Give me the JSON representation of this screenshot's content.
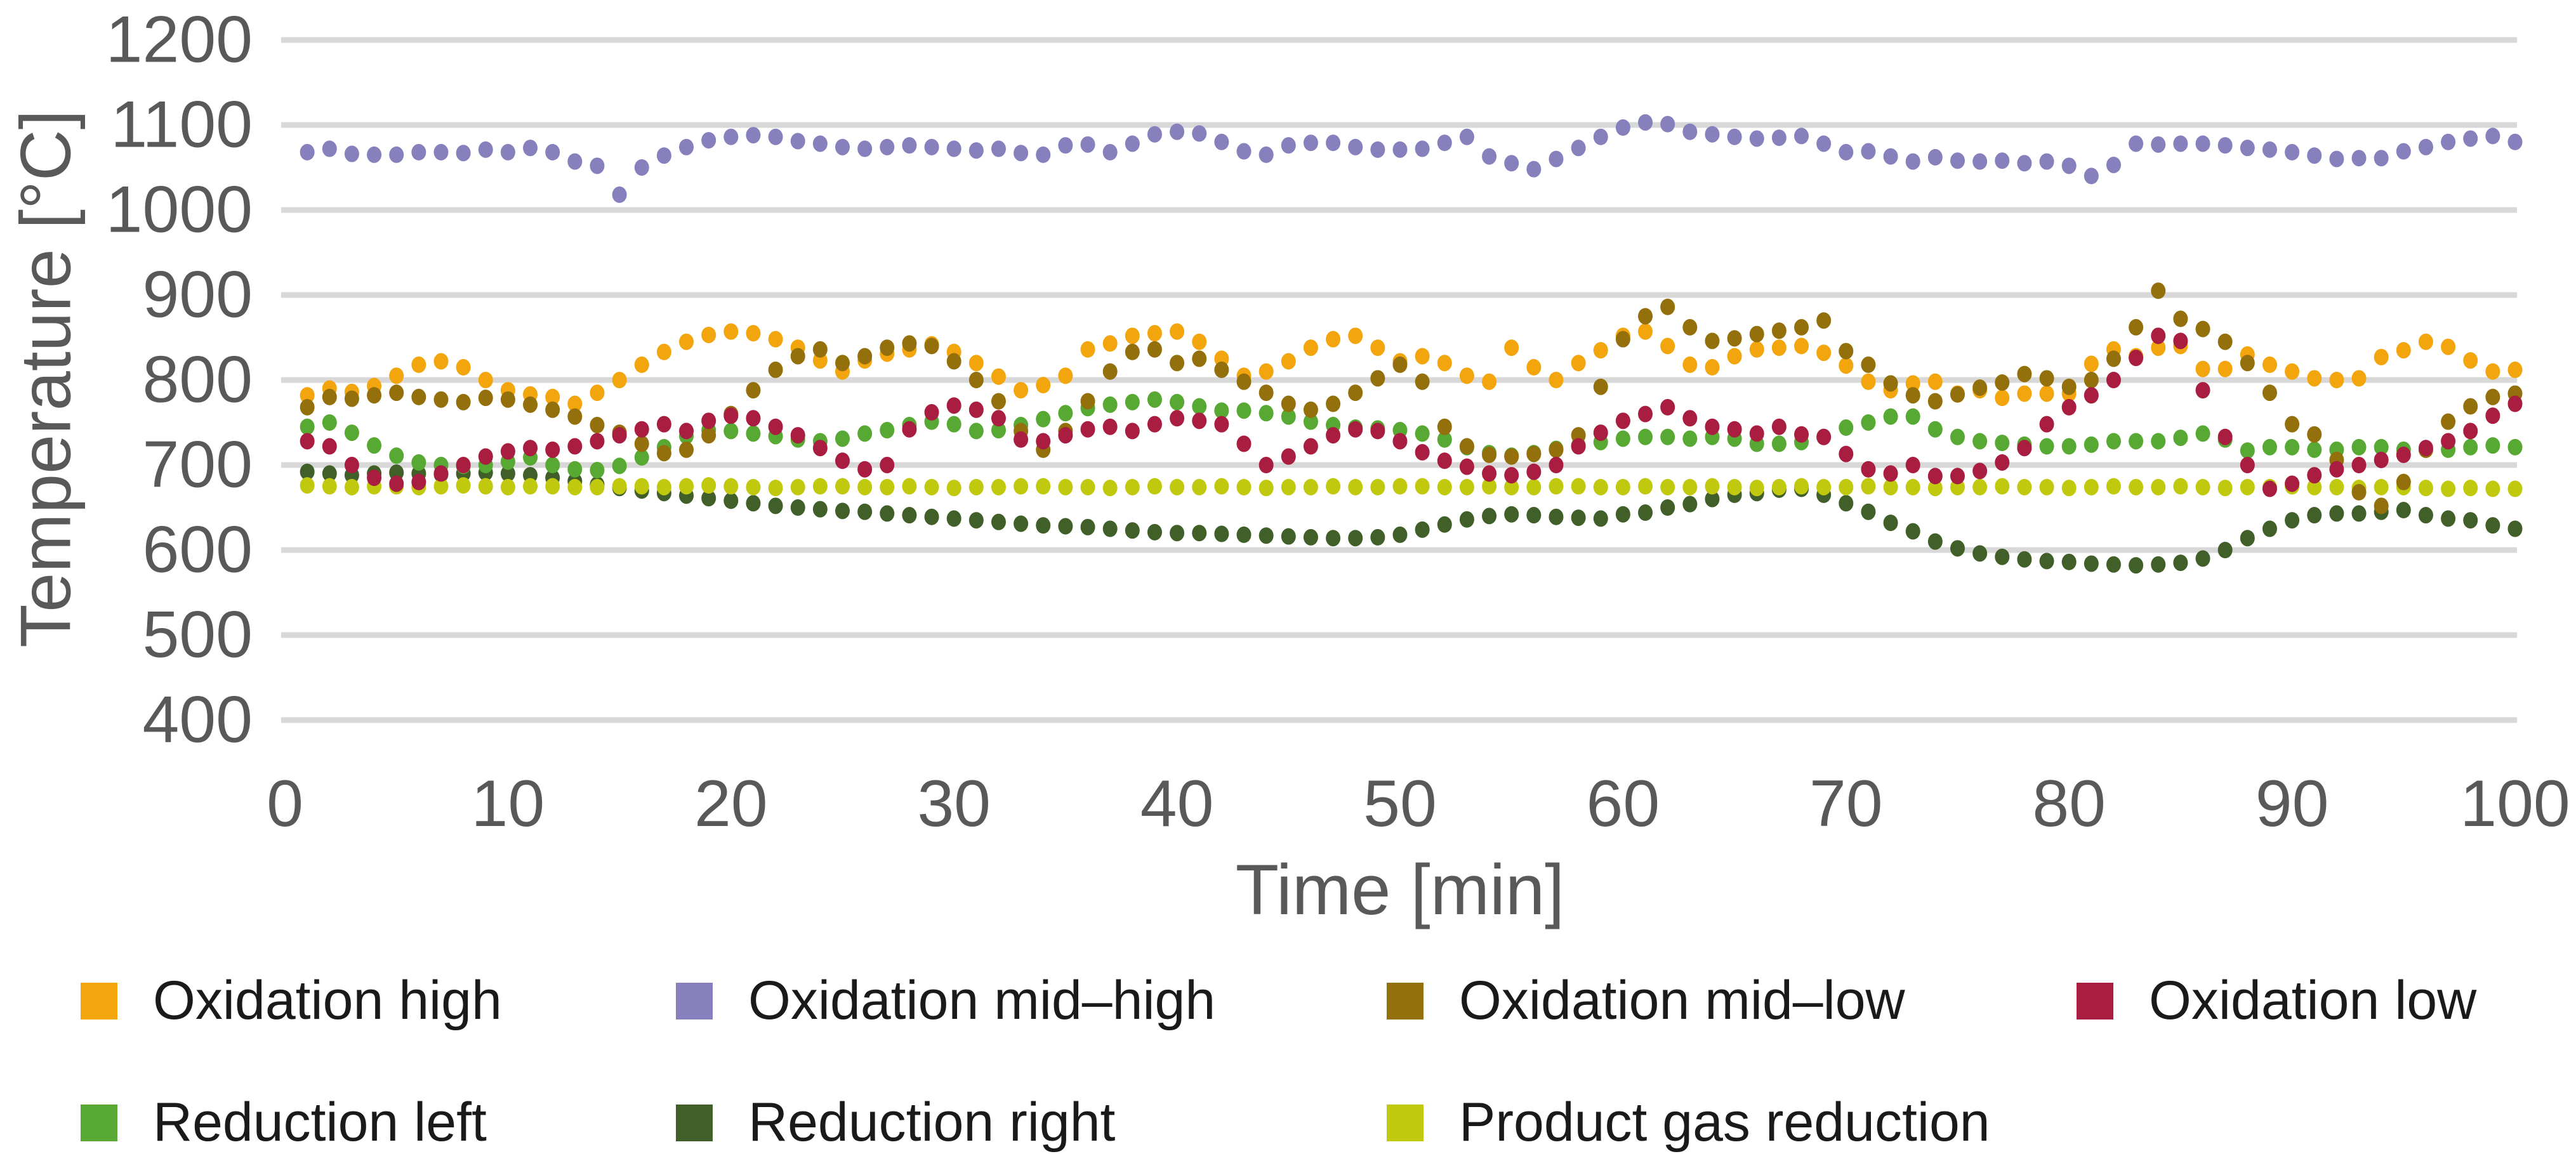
{
  "axes": {
    "x_title": "Time [min]",
    "y_title": "Temperature [°C]"
  },
  "chart_data": {
    "type": "scatter",
    "title": "",
    "xlabel": "Time [min]",
    "ylabel": "Temperature [°C]",
    "xlim": [
      0,
      100
    ],
    "ylim": [
      400,
      1200
    ],
    "x_ticks": [
      0,
      10,
      20,
      30,
      40,
      50,
      60,
      70,
      80,
      90,
      100
    ],
    "y_ticks": [
      400,
      500,
      600,
      700,
      800,
      900,
      1000,
      1100,
      1200
    ],
    "grid": "horizontal",
    "gridline_color": "#d8d8d8",
    "axis_text_color": "#595959",
    "legend_position": "bottom",
    "x": [
      1,
      2,
      3,
      4,
      5,
      6,
      7,
      8,
      9,
      10,
      11,
      12,
      13,
      14,
      15,
      16,
      17,
      18,
      19,
      20,
      21,
      22,
      23,
      24,
      25,
      26,
      27,
      28,
      29,
      30,
      31,
      32,
      33,
      34,
      35,
      36,
      37,
      38,
      39,
      40,
      41,
      42,
      43,
      44,
      45,
      46,
      47,
      48,
      49,
      50,
      51,
      52,
      53,
      54,
      55,
      56,
      57,
      58,
      59,
      60,
      61,
      62,
      63,
      64,
      65,
      66,
      67,
      68,
      69,
      70,
      71,
      72,
      73,
      74,
      75,
      76,
      77,
      78,
      79,
      80,
      81,
      82,
      83,
      84,
      85,
      86,
      87,
      88,
      89,
      90,
      91,
      92,
      93,
      94,
      95,
      96,
      97,
      98,
      99,
      100
    ],
    "series": [
      {
        "name": "Oxidation high",
        "color": "#F3A50E",
        "values": [
          782,
          790,
          786,
          793,
          805,
          818,
          822,
          815,
          800,
          788,
          783,
          780,
          772,
          785,
          800,
          818,
          833,
          845,
          853,
          857,
          855,
          848,
          838,
          823,
          810,
          823,
          831,
          836,
          842,
          833,
          820,
          804,
          788,
          794,
          805,
          836,
          843,
          852,
          855,
          857,
          845,
          825,
          805,
          810,
          822,
          838,
          848,
          852,
          838,
          822,
          828,
          820,
          805,
          798,
          838,
          815,
          800,
          820,
          835,
          852,
          857,
          840,
          818,
          815,
          828,
          836,
          838,
          840,
          832,
          817,
          798,
          788,
          796,
          798,
          784,
          788,
          779,
          784,
          784,
          784,
          819,
          836,
          828,
          838,
          840,
          813,
          813,
          830,
          818,
          810,
          802,
          800,
          802,
          827,
          835,
          845,
          839,
          823,
          810,
          812
        ]
      },
      {
        "name": "Oxidation mid–high",
        "color": "#8680BD",
        "values": [
          1068,
          1072,
          1066,
          1065,
          1065,
          1068,
          1068,
          1067,
          1071,
          1068,
          1073,
          1068,
          1057,
          1052,
          1018,
          1050,
          1064,
          1074,
          1082,
          1086,
          1088,
          1086,
          1081,
          1078,
          1074,
          1072,
          1074,
          1076,
          1074,
          1072,
          1070,
          1072,
          1067,
          1065,
          1076,
          1077,
          1068,
          1078,
          1089,
          1092,
          1090,
          1080,
          1069,
          1065,
          1076,
          1079,
          1079,
          1074,
          1071,
          1071,
          1072,
          1079,
          1086,
          1063,
          1055,
          1048,
          1060,
          1073,
          1086,
          1097,
          1103,
          1101,
          1092,
          1089,
          1086,
          1084,
          1085,
          1087,
          1078,
          1068,
          1069,
          1063,
          1057,
          1062,
          1058,
          1057,
          1058,
          1055,
          1057,
          1052,
          1040,
          1053,
          1078,
          1077,
          1078,
          1078,
          1076,
          1073,
          1071,
          1068,
          1064,
          1060,
          1061,
          1061,
          1069,
          1074,
          1080,
          1084,
          1087,
          1080
        ]
      },
      {
        "name": "Oxidation mid–low",
        "color": "#94700C",
        "values": [
          768,
          780,
          778,
          782,
          785,
          780,
          777,
          774,
          779,
          777,
          771,
          765,
          757,
          747,
          738,
          725,
          714,
          718,
          735,
          760,
          788,
          812,
          828,
          836,
          820,
          828,
          838,
          843,
          840,
          822,
          800,
          775,
          740,
          718,
          740,
          775,
          810,
          833,
          836,
          820,
          825,
          812,
          798,
          785,
          772,
          765,
          772,
          785,
          802,
          818,
          798,
          745,
          722,
          712,
          710,
          713,
          718,
          735,
          792,
          848,
          875,
          886,
          862,
          846,
          849,
          854,
          858,
          862,
          870,
          834,
          818,
          796,
          782,
          775,
          783,
          791,
          797,
          807,
          802,
          792,
          800,
          825,
          862,
          905,
          872,
          860,
          845,
          820,
          785,
          748,
          736,
          706,
          668,
          652,
          680,
          718,
          751,
          769,
          780,
          784
        ]
      },
      {
        "name": "Oxidation low",
        "color": "#A81D40",
        "values": [
          728,
          722,
          700,
          685,
          678,
          680,
          690,
          700,
          710,
          716,
          720,
          718,
          722,
          728,
          735,
          742,
          748,
          740,
          752,
          758,
          755,
          745,
          735,
          720,
          705,
          695,
          700,
          742,
          762,
          770,
          765,
          755,
          730,
          728,
          735,
          742,
          745,
          740,
          748,
          755,
          752,
          748,
          725,
          700,
          710,
          722,
          735,
          742,
          740,
          728,
          715,
          705,
          698,
          690,
          688,
          692,
          700,
          722,
          738,
          752,
          760,
          768,
          755,
          745,
          742,
          737,
          745,
          736,
          733,
          713,
          695,
          690,
          700,
          687,
          687,
          693,
          703,
          720,
          748,
          768,
          782,
          800,
          826,
          852,
          846,
          788,
          733,
          700,
          672,
          678,
          688,
          695,
          700,
          706,
          712,
          720,
          728,
          740,
          758,
          772
        ]
      },
      {
        "name": "Reduction left",
        "color": "#57A933",
        "values": [
          745,
          750,
          738,
          723,
          711,
          703,
          700,
          699,
          700,
          704,
          709,
          700,
          695,
          694,
          699,
          709,
          721,
          734,
          741,
          740,
          737,
          734,
          730,
          728,
          731,
          737,
          741,
          747,
          751,
          748,
          740,
          741,
          747,
          754,
          761,
          767,
          771,
          774,
          777,
          774,
          769,
          764,
          764,
          761,
          757,
          751,
          747,
          744,
          743,
          741,
          737,
          730,
          721,
          714,
          711,
          714,
          719,
          723,
          727,
          731,
          733,
          733,
          731,
          733,
          731,
          725,
          725,
          727,
          733,
          744,
          750,
          757,
          757,
          742,
          733,
          728,
          726,
          724,
          722,
          722,
          724,
          728,
          728,
          728,
          732,
          737,
          730,
          717,
          721,
          721,
          718,
          718,
          721,
          721,
          718,
          718,
          718,
          721,
          723,
          721
        ]
      },
      {
        "name": "Reduction right",
        "color": "#415F28",
        "values": [
          692,
          690,
          688,
          690,
          691,
          690,
          689,
          690,
          691,
          690,
          688,
          685,
          681,
          677,
          673,
          670,
          667,
          664,
          661,
          658,
          655,
          652,
          650,
          648,
          646,
          645,
          643,
          641,
          639,
          637,
          635,
          633,
          631,
          629,
          628,
          627,
          625,
          623,
          621,
          620,
          620,
          619,
          618,
          617,
          616,
          615,
          614,
          614,
          615,
          618,
          624,
          630,
          636,
          640,
          642,
          641,
          639,
          638,
          637,
          642,
          644,
          650,
          654,
          660,
          665,
          667,
          671,
          672,
          665,
          655,
          645,
          632,
          622,
          610,
          602,
          596,
          592,
          589,
          587,
          586,
          584,
          583,
          582,
          583,
          585,
          590,
          600,
          614,
          625,
          635,
          641,
          643,
          643,
          645,
          647,
          641,
          637,
          635,
          629,
          625
        ]
      },
      {
        "name": "Product gas reduction",
        "color": "#C0C90E",
        "values": [
          676,
          675,
          674,
          675,
          675,
          674,
          675,
          676,
          675,
          674,
          675,
          675,
          674,
          674,
          675,
          675,
          674,
          675,
          676,
          675,
          674,
          673,
          674,
          675,
          675,
          674,
          674,
          675,
          674,
          673,
          674,
          674,
          675,
          675,
          674,
          674,
          673,
          674,
          675,
          674,
          674,
          675,
          674,
          673,
          674,
          674,
          675,
          674,
          674,
          675,
          675,
          674,
          674,
          675,
          674,
          674,
          675,
          675,
          674,
          674,
          675,
          674,
          674,
          675,
          674,
          673,
          674,
          675,
          674,
          674,
          675,
          674,
          674,
          673,
          674,
          674,
          675,
          674,
          674,
          673,
          674,
          675,
          674,
          674,
          675,
          674,
          673,
          674,
          674,
          675,
          674,
          674,
          673,
          674,
          674,
          673,
          672,
          673,
          672,
          672
        ]
      }
    ]
  },
  "legend": {
    "rows": [
      [
        "Oxidation high",
        "Oxidation mid–high",
        "Oxidation mid–low",
        "Oxidation low"
      ],
      [
        "Reduction left",
        "Reduction right",
        "Product gas reduction"
      ]
    ]
  }
}
